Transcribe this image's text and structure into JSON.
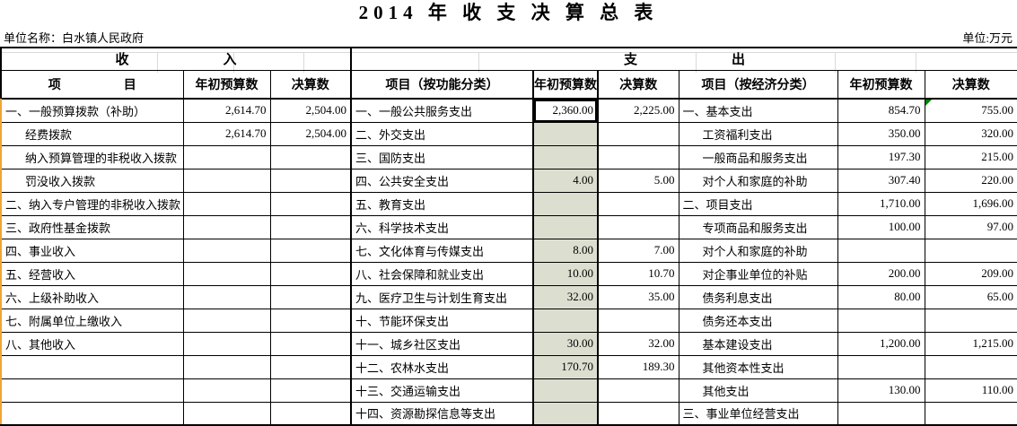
{
  "title": "2014 年 收 支 决 算 总 表",
  "unit_label": "单位名称：白水镇人民政府",
  "unit_note": "单位:万元",
  "table": {
    "income_band": "收　　　　　　　入",
    "expenditure_band": "支　　　　　　　出",
    "headers": {
      "income_item": "项　　　　　目",
      "income_budget": "年初预算数",
      "income_final": "决算数",
      "function_item": "项目（按功能分类）",
      "function_budget": "年初预算数",
      "function_final": "决算数",
      "economic_item": "项目（按经济分类）",
      "economic_budget": "年初预算数",
      "economic_final": "决算数"
    },
    "income_rows": [
      {
        "item": "一、一般预算拨款（补助）",
        "indent": 0,
        "budget": "2,614.70",
        "final": "2,504.00"
      },
      {
        "item": "经费拨款",
        "indent": 1,
        "budget": "2,614.70",
        "final": "2,504.00"
      },
      {
        "item": "纳入预算管理的非税收入拨款",
        "indent": 1,
        "budget": "",
        "final": ""
      },
      {
        "item": "罚没收入拨款",
        "indent": 1,
        "budget": "",
        "final": ""
      },
      {
        "item": "二、纳入专户管理的非税收入拨款",
        "indent": 0,
        "budget": "",
        "final": ""
      },
      {
        "item": "三、政府性基金拨款",
        "indent": 0,
        "budget": "",
        "final": ""
      },
      {
        "item": "四、事业收入",
        "indent": 0,
        "budget": "",
        "final": ""
      },
      {
        "item": "五、经营收入",
        "indent": 0,
        "budget": "",
        "final": ""
      },
      {
        "item": "六、上级补助收入",
        "indent": 0,
        "budget": "",
        "final": ""
      },
      {
        "item": "七、附属单位上缴收入",
        "indent": 0,
        "budget": "",
        "final": ""
      },
      {
        "item": "八、其他收入",
        "indent": 0,
        "budget": "",
        "final": ""
      },
      {
        "item": "",
        "indent": 0,
        "budget": "",
        "final": ""
      },
      {
        "item": "",
        "indent": 0,
        "budget": "",
        "final": ""
      },
      {
        "item": "",
        "indent": 0,
        "budget": "",
        "final": ""
      }
    ],
    "function_rows": [
      {
        "item": "一、一般公共服务支出",
        "budget": "2,360.00",
        "final": "2,225.00"
      },
      {
        "item": "二、外交支出",
        "budget": "",
        "final": ""
      },
      {
        "item": "三、国防支出",
        "budget": "",
        "final": ""
      },
      {
        "item": "四、公共安全支出",
        "budget": "4.00",
        "final": "5.00"
      },
      {
        "item": "五、教育支出",
        "budget": "",
        "final": ""
      },
      {
        "item": "六、科学技术支出",
        "budget": "",
        "final": ""
      },
      {
        "item": "七、文化体育与传媒支出",
        "budget": "8.00",
        "final": "7.00"
      },
      {
        "item": "八、社会保障和就业支出",
        "budget": "10.00",
        "final": "10.70"
      },
      {
        "item": "九、医疗卫生与计划生育支出",
        "budget": "32.00",
        "final": "35.00"
      },
      {
        "item": "十、节能环保支出",
        "budget": "",
        "final": ""
      },
      {
        "item": "十一、城乡社区支出",
        "budget": "30.00",
        "final": "32.00"
      },
      {
        "item": "十二、农林水支出",
        "budget": "170.70",
        "final": "189.30"
      },
      {
        "item": "十三、交通运输支出",
        "budget": "",
        "final": ""
      },
      {
        "item": "十四、资源勘探信息等支出",
        "budget": "",
        "final": ""
      }
    ],
    "economic_rows": [
      {
        "item": "一、基本支出",
        "indent": 0,
        "budget": "854.70",
        "final": "755.00",
        "note": true
      },
      {
        "item": "工资福利支出",
        "indent": 1,
        "budget": "350.00",
        "final": "320.00"
      },
      {
        "item": "一般商品和服务支出",
        "indent": 1,
        "budget": "197.30",
        "final": "215.00"
      },
      {
        "item": "对个人和家庭的补助",
        "indent": 1,
        "budget": "307.40",
        "final": "220.00"
      },
      {
        "item": "二、项目支出",
        "indent": 0,
        "budget": "1,710.00",
        "final": "1,696.00"
      },
      {
        "item": "专项商品和服务支出",
        "indent": 1,
        "budget": "100.00",
        "final": "97.00"
      },
      {
        "item": "对个人和家庭的补助",
        "indent": 1,
        "budget": "",
        "final": ""
      },
      {
        "item": "对企事业单位的补贴",
        "indent": 1,
        "budget": "200.00",
        "final": "209.00"
      },
      {
        "item": "债务利息支出",
        "indent": 1,
        "budget": "80.00",
        "final": "65.00"
      },
      {
        "item": "债务还本支出",
        "indent": 1,
        "budget": "",
        "final": ""
      },
      {
        "item": "基本建设支出",
        "indent": 1,
        "budget": "1,200.00",
        "final": "1,215.00"
      },
      {
        "item": "其他资本性支出",
        "indent": 1,
        "budget": "",
        "final": ""
      },
      {
        "item": "其他支出",
        "indent": 1,
        "budget": "130.00",
        "final": "110.00"
      },
      {
        "item": "三、事业单位经营支出",
        "indent": 0,
        "budget": "",
        "final": ""
      }
    ]
  },
  "colors": {
    "selection_fill": "#dcdfd0",
    "selection_border": "#000000",
    "left_strip": "#f0a433",
    "note_triangle": "#008200",
    "faint_grid": "#d9d9d9"
  }
}
